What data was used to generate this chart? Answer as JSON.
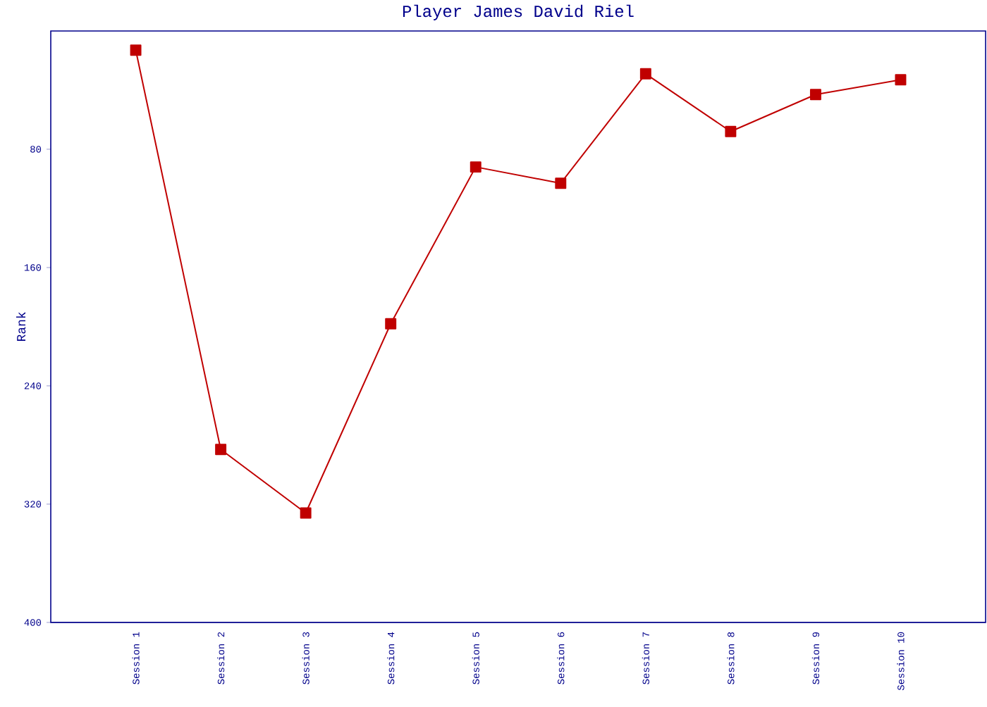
{
  "chart_data": {
    "type": "line",
    "title": "Player James David Riel",
    "ylabel": "Rank",
    "categories": [
      "Session 1",
      "Session 2",
      "Session 3",
      "Session 4",
      "Session 5",
      "Session 6",
      "Session 7",
      "Session 8",
      "Session 9",
      "Session 10"
    ],
    "values": [
      13,
      283,
      326,
      198,
      92,
      103,
      29,
      68,
      43,
      33
    ],
    "color": "#c00000",
    "ylim": [
      400,
      0
    ],
    "yticks": [
      80,
      160,
      240,
      320,
      400
    ],
    "marker": "square",
    "line_style": "solid"
  }
}
